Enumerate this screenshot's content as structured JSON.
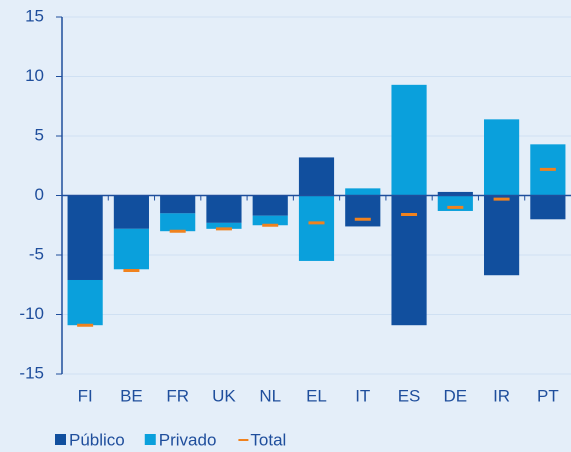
{
  "chart_data": {
    "type": "bar",
    "stacked": true,
    "categories": [
      "FI",
      "BE",
      "FR",
      "UK",
      "NL",
      "EL",
      "IT",
      "ES",
      "DE",
      "IR",
      "PT"
    ],
    "series": [
      {
        "name": "Público",
        "color": "#114f9e",
        "values": [
          -7.1,
          -2.8,
          -1.5,
          -2.3,
          -1.7,
          3.2,
          -2.6,
          -10.9,
          0.3,
          -6.7,
          -2.0
        ]
      },
      {
        "name": "Privado",
        "color": "#0aa0dc",
        "values": [
          -3.8,
          -3.4,
          -1.5,
          -0.5,
          -0.8,
          -5.5,
          0.6,
          9.3,
          -1.3,
          6.4,
          4.3
        ]
      },
      {
        "name": "Total",
        "type": "marker",
        "color": "#f0821e",
        "values": [
          -10.9,
          -6.3,
          -3.0,
          -2.8,
          -2.5,
          -2.3,
          -2.0,
          -1.6,
          -1.0,
          -0.3,
          2.2
        ]
      }
    ],
    "ylim": [
      -15,
      15
    ],
    "yticks": [
      -15,
      -10,
      -5,
      0,
      5,
      10,
      15
    ],
    "grid": true
  }
}
